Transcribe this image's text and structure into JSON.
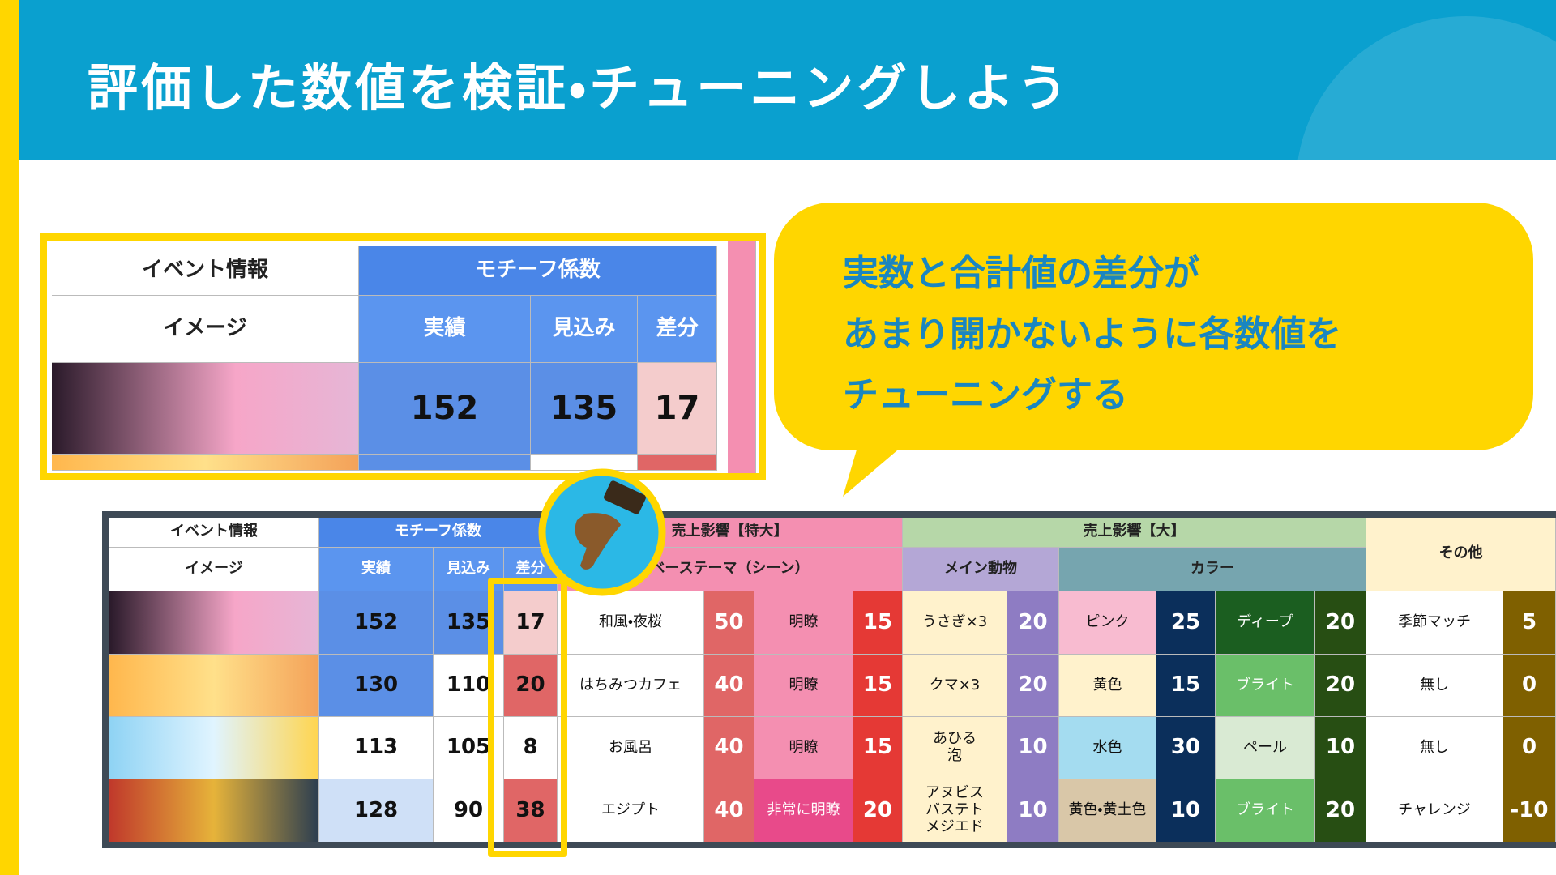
{
  "header": {
    "title": "評価した数値を検証・チューニングしよう"
  },
  "bubble": {
    "lines": [
      "実数と合計値の差分が",
      "あまり開かないように各数値を",
      "チューニングする"
    ]
  },
  "zoom_table": {
    "header1": [
      "イベント情報",
      "モチーフ係数"
    ],
    "header2": [
      "イメージ",
      "実績",
      "見込み",
      "差分"
    ],
    "row": [
      152,
      135,
      17
    ]
  },
  "table": {
    "header1": [
      "イベント情報",
      "モチーフ係数",
      "売上影響【特大】",
      "売上影響【大】",
      "その他"
    ],
    "header2": [
      "イメージ",
      "実績",
      "見込み",
      "差分",
      "ベーステーマ（シーン）",
      "メイン動物",
      "カラー"
    ],
    "rows": [
      [
        152,
        135,
        17,
        "和風・夜桜",
        50,
        "明瞭",
        15,
        "うさぎ×3",
        20,
        "ピンク",
        25,
        "ディープ",
        20,
        "季節マッチ",
        5
      ],
      [
        130,
        110,
        20,
        "はちみつカフェ",
        40,
        "明瞭",
        15,
        "クマ×3",
        20,
        "黄色",
        15,
        "ブライト",
        20,
        "無し",
        0
      ],
      [
        113,
        105,
        8,
        "お風呂",
        40,
        "明瞭",
        15,
        "あひる\n泡",
        10,
        "水色",
        30,
        "ペール",
        10,
        "無し",
        0
      ],
      [
        128,
        90,
        38,
        "エジプト",
        40,
        "非常に明瞭",
        20,
        "アヌビス\nバステト\nメジエド",
        10,
        "黄色・黄土色",
        10,
        "ブライト",
        20,
        "チャレンジ",
        -10
      ]
    ]
  }
}
